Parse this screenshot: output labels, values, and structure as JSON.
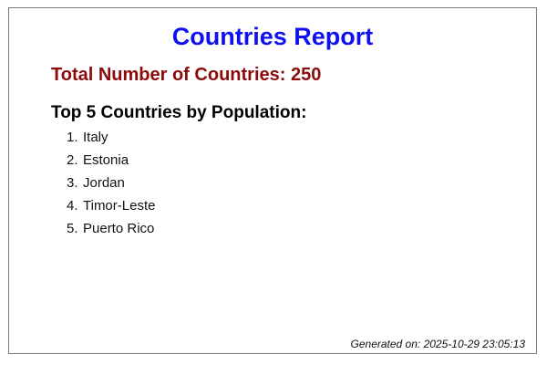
{
  "report": {
    "title": "Countries Report",
    "total_label": "Total Number of Countries: 250",
    "top_heading": "Top 5 Countries by Population:",
    "top_countries": [
      {
        "rank": "1.",
        "name": "Italy"
      },
      {
        "rank": "2.",
        "name": "Estonia"
      },
      {
        "rank": "3.",
        "name": "Jordan"
      },
      {
        "rank": "4.",
        "name": "Timor-Leste"
      },
      {
        "rank": "5.",
        "name": "Puerto Rico"
      }
    ],
    "generated_on": "Generated on: 2025-10-29 23:05:13"
  },
  "colors": {
    "title": "#1010ee",
    "total": "#8b0b0b",
    "border": "#7a7a7a"
  }
}
